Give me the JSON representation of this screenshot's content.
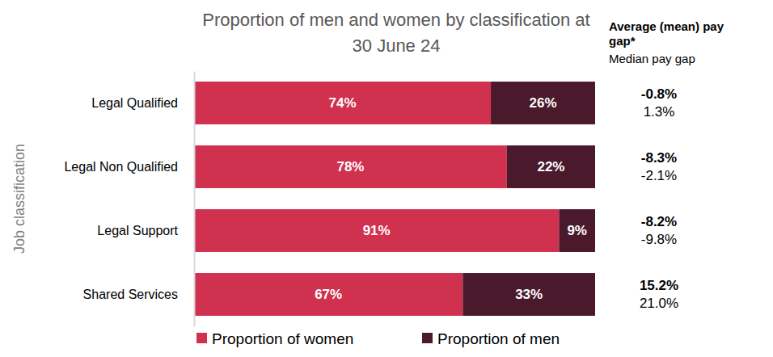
{
  "chart_data": {
    "type": "bar",
    "orientation": "horizontal",
    "stacked": true,
    "data_labels": true,
    "legend": "bottom",
    "tick_labels": "y",
    "title": "Proportion of men and women by classification at 30 June 24",
    "y_label": "Job classification",
    "categories": [
      "Legal Qualified",
      "Legal Non Qualified",
      "Legal Support",
      "Shared Services"
    ],
    "xlim": [
      0,
      100
    ],
    "series": [
      {
        "name": "Proportion of women",
        "color": "#d0314f",
        "values": [
          74,
          78,
          91,
          67
        ],
        "value_labels": [
          "74%",
          "78%",
          "91%",
          "67%"
        ]
      },
      {
        "name": "Proportion of men",
        "color": "#4a1a2c",
        "values": [
          26,
          22,
          9,
          33
        ],
        "value_labels": [
          "26%",
          "22%",
          "9%",
          "33%"
        ]
      }
    ],
    "pay_gap": {
      "mean_title": "Average (mean) pay gap*",
      "median_title": "Median pay gap",
      "mean": {
        "values": [
          -0.8,
          -8.3,
          -8.2,
          15.2
        ],
        "value_labels": [
          "-0.8%",
          "-8.3%",
          "-8.2%",
          "15.2%"
        ]
      },
      "median": {
        "values": [
          1.3,
          -2.1,
          -9.8,
          21.0
        ],
        "value_labels": [
          "1.3%",
          "-2.1%",
          "-9.8%",
          "21.0%"
        ]
      }
    }
  }
}
